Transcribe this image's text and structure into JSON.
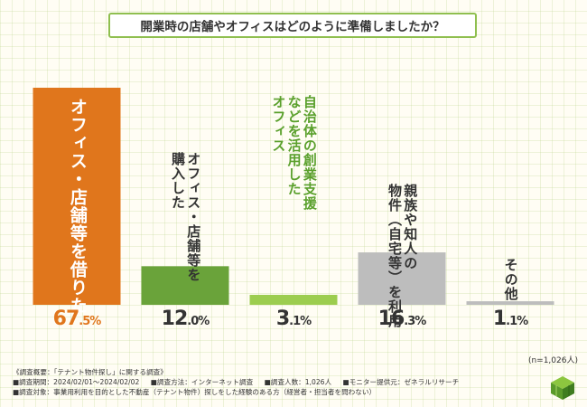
{
  "title": "開業時の店舗やオフィスはどのように準備しましたか？",
  "chart_data": {
    "type": "bar",
    "title": "開業時の店舗やオフィスはどのように準備しましたか？",
    "categories": [
      "オフィス・店舗等を借りた",
      "オフィス・店舗等を購入した",
      "自治体の創業支援オフィスなどを活用した",
      "親族や知人の物件（自宅等）を利用",
      "その他"
    ],
    "values": [
      67.5,
      12.0,
      3.1,
      16.3,
      1.1
    ],
    "value_labels": [
      {
        "int": "67",
        "dec": ".5%"
      },
      {
        "int": "12",
        "dec": ".0%"
      },
      {
        "int": "3",
        "dec": ".1%"
      },
      {
        "int": "16",
        "dec": ".3%"
      },
      {
        "int": "1",
        "dec": ".1%"
      }
    ],
    "colors": [
      "#e0761c",
      "#6aa33a",
      "#9ccd4f",
      "#bdbdbd",
      "#bdbdbd"
    ],
    "ylim": [
      0,
      67.5
    ],
    "unit": "%"
  },
  "bars": [
    {
      "lines": [
        "オフィス・店舗等を借りた"
      ]
    },
    {
      "lines": [
        "オフィス・店舗等を",
        "購入した"
      ]
    },
    {
      "lines": [
        "自治体の創業支援",
        "などを活用した",
        "オフィス"
      ]
    },
    {
      "lines": [
        "親族や知人の",
        "物件（自宅等）を利用"
      ]
    },
    {
      "lines": [
        "その他"
      ]
    }
  ],
  "n_note": "(n=1,026人)",
  "footnotes": {
    "line1": "《調査概要：「テナント物件探し」に関する調査》",
    "period": "■調査期間：2024/02/01～2024/02/02",
    "method": "■調査方法：インターネット調査",
    "count": "■調査人数：1,026人",
    "provider": "■モニター提供元：ゼネラルリサーチ",
    "target": "■調査対象：事業用利用を目的とした不動産（テナント物件）探しをした経験のある方（経営者・担当者を問わない）"
  }
}
